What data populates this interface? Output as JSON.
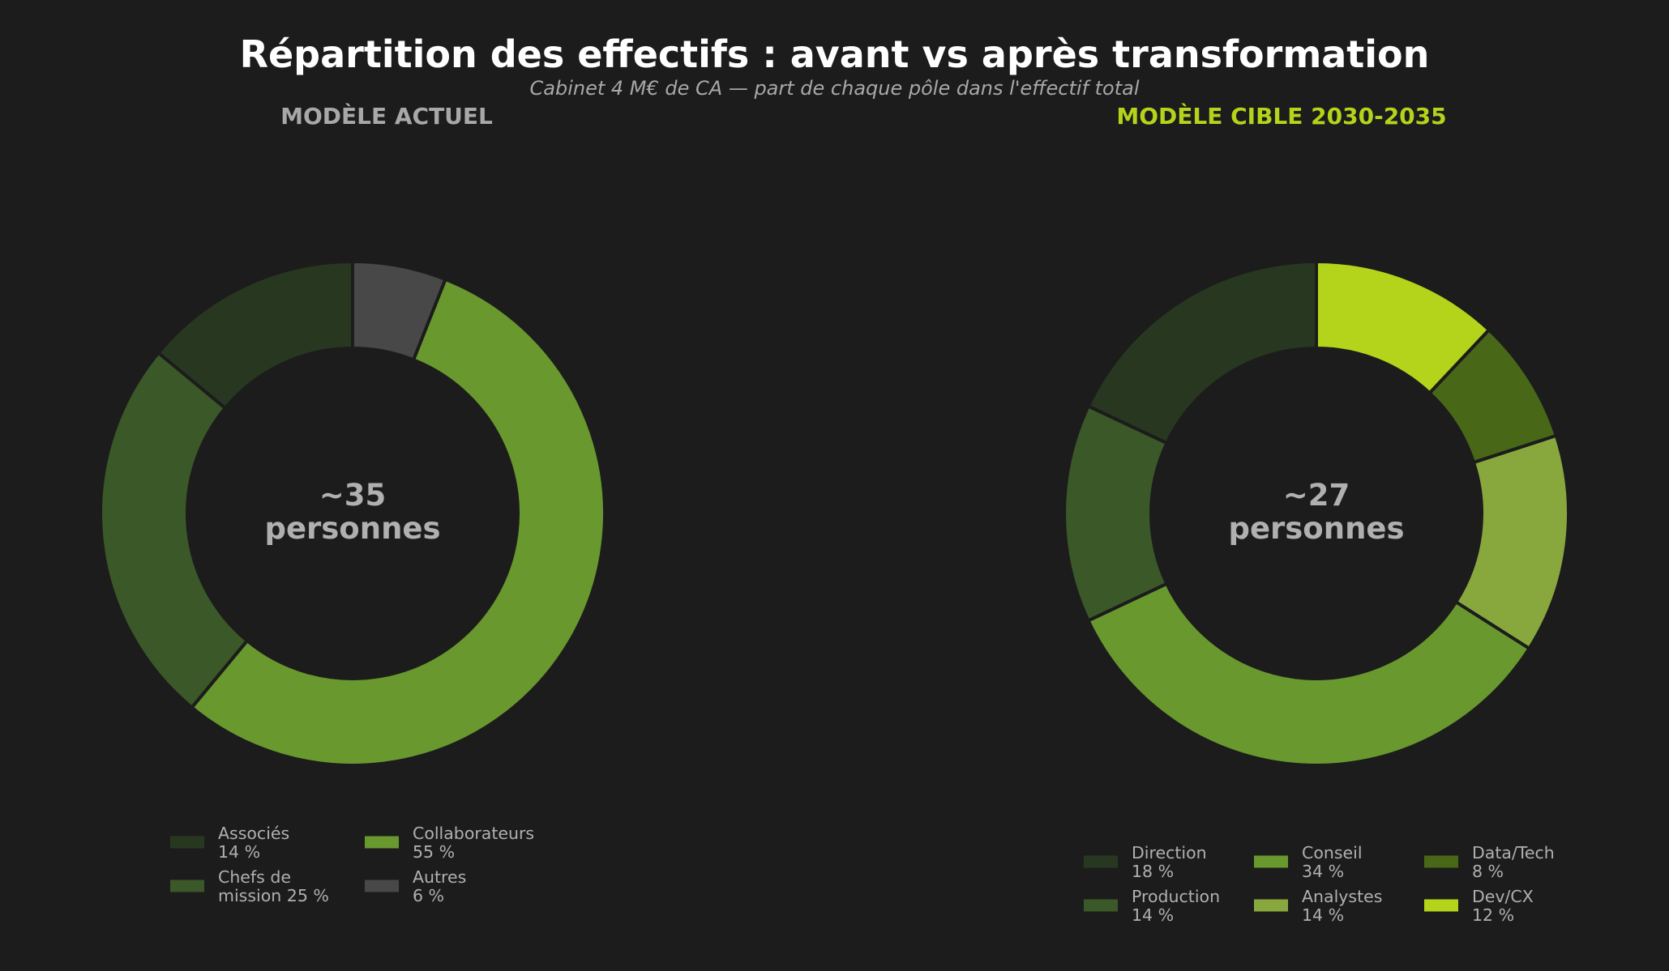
{
  "title": "Répartition des effectifs : avant vs après transformation",
  "subtitle": "Cabinet 4 M€ de CA — part de chaque pôle dans l'effectif total",
  "chart_data": [
    {
      "type": "pie",
      "style": "donut",
      "panel_title": "MODÈLE ACTUEL",
      "panel_title_color": "#a8a8a8",
      "center_label": [
        "~35",
        "personnes"
      ],
      "legend_placement": "bottom",
      "legend_columns": 2,
      "slices": [
        {
          "label": "Associés",
          "value": 14,
          "value_label": "14 %",
          "color": "#283820",
          "legend_lines": [
            "Associés",
            "14 %"
          ]
        },
        {
          "label": "Chefs de mission",
          "value": 25,
          "value_label": "25 %",
          "color": "#3a5828",
          "legend_lines": [
            "Chefs de",
            "mission 25 %"
          ]
        },
        {
          "label": "Collaborateurs",
          "value": 55,
          "value_label": "55 %",
          "color": "#68982e",
          "legend_lines": [
            "Collaborateurs",
            "55 %"
          ]
        },
        {
          "label": "Autres",
          "value": 6,
          "value_label": "6 %",
          "color": "#484848",
          "legend_lines": [
            "Autres",
            "6 %"
          ]
        }
      ],
      "drawing_order": [
        "Associés",
        "Chefs de mission",
        "Collaborateurs",
        "Autres"
      ]
    },
    {
      "type": "pie",
      "style": "donut",
      "panel_title": "MODÈLE CIBLE 2030-2035",
      "panel_title_color": "#b3d41a",
      "center_label": [
        "~27",
        "personnes"
      ],
      "legend_placement": "bottom",
      "legend_columns": 3,
      "slices": [
        {
          "label": "Direction",
          "value": 18,
          "value_label": "18 %",
          "color": "#283820",
          "legend_lines": [
            "Direction",
            "18 %"
          ]
        },
        {
          "label": "Production",
          "value": 14,
          "value_label": "14 %",
          "color": "#3a5828",
          "legend_lines": [
            "Production",
            "14 %"
          ]
        },
        {
          "label": "Conseil",
          "value": 34,
          "value_label": "34 %",
          "color": "#68982e",
          "legend_lines": [
            "Conseil",
            "34 %"
          ]
        },
        {
          "label": "Analystes",
          "value": 14,
          "value_label": "14 %",
          "color": "#88a83e",
          "legend_lines": [
            "Analystes",
            "14 %"
          ]
        },
        {
          "label": "Data/Tech",
          "value": 8,
          "value_label": "8 %",
          "color": "#486818",
          "legend_lines": [
            "Data/Tech",
            "8 %"
          ]
        },
        {
          "label": "Dev/CX",
          "value": 12,
          "value_label": "12 %",
          "color": "#b3d41a",
          "legend_lines": [
            "Dev/CX",
            "12 %"
          ]
        }
      ],
      "drawing_order": [
        "Direction",
        "Production",
        "Conseil",
        "Analystes",
        "Data/Tech",
        "Dev/CX"
      ]
    }
  ]
}
